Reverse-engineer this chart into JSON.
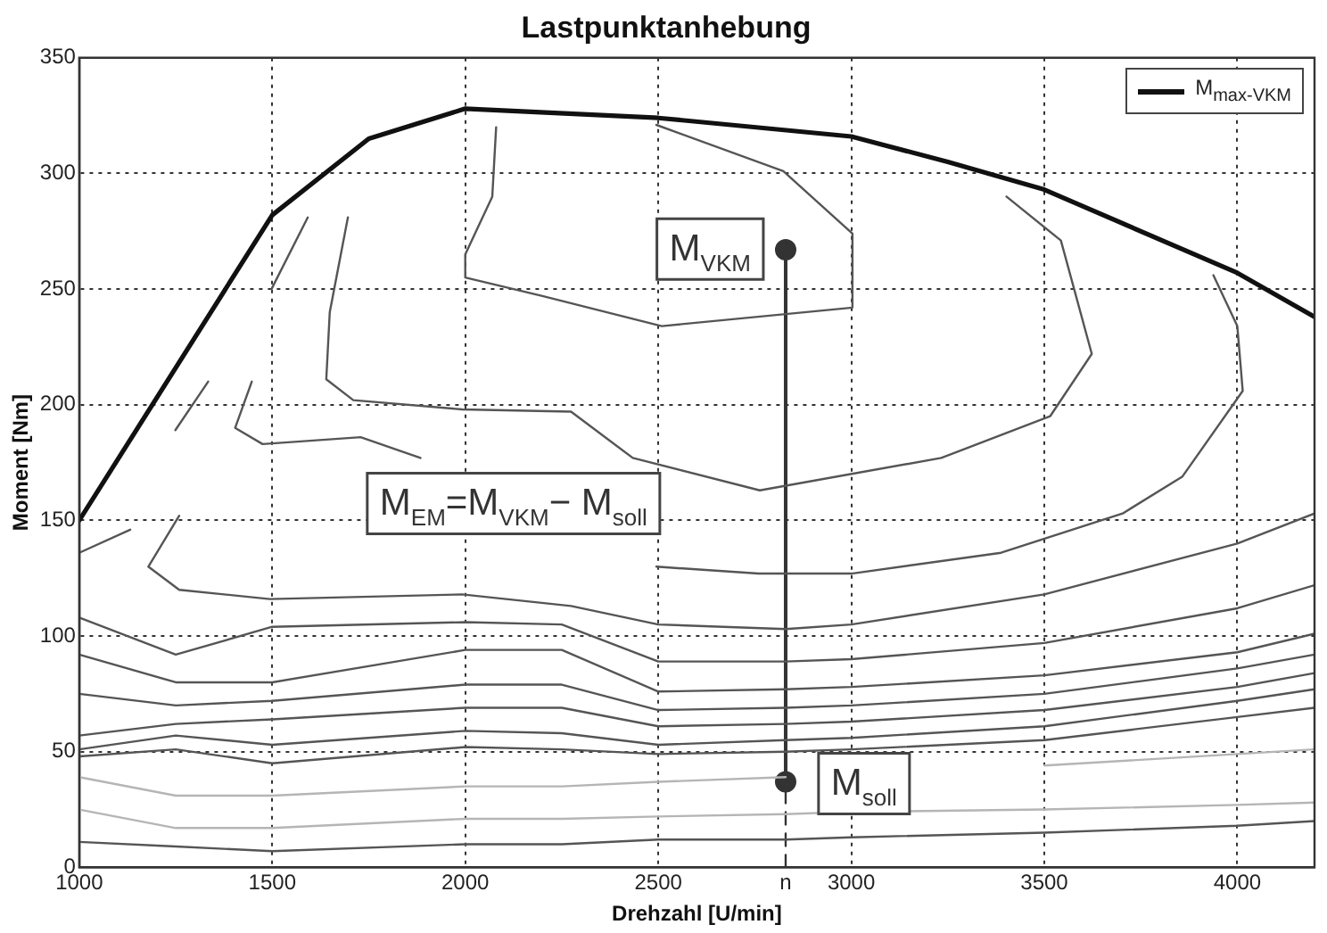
{
  "chart_data": {
    "type": "line",
    "title": "Lastpunktanhebung",
    "xlabel": "Drehzahl [U/min]",
    "ylabel": "Moment [Nm]",
    "xlim": [
      1000,
      4200
    ],
    "ylim": [
      0,
      350
    ],
    "xticks": [
      1000,
      1500,
      2000,
      2500,
      {
        "value": 2830,
        "label": "n"
      },
      3000,
      3500,
      4000
    ],
    "yticks": [
      0,
      50,
      100,
      150,
      200,
      250,
      300,
      350
    ],
    "grid": true,
    "legend": "top right",
    "marker": "none",
    "line_style": "solid",
    "series": [
      {
        "name": "M$_{max-VKM}$",
        "color": "#111111",
        "x": [
          1000,
          1500,
          1750,
          2000,
          2500,
          3000,
          3250,
          3500,
          4000,
          4200
        ],
        "values": [
          150,
          282,
          315,
          328,
          324,
          316,
          305,
          293,
          257,
          238
        ]
      },
      {
        "color": "#555555",
        "x": [
          1000,
          1250,
          1500,
          2000,
          2250,
          2500,
          2830,
          3000,
          3500,
          4000,
          4200
        ],
        "values": [
          11,
          9,
          7,
          10,
          10,
          12,
          12,
          13,
          15,
          18,
          20
        ]
      },
      {
        "color": "#b5b5b5",
        "x": [
          1000,
          1250,
          1500,
          2000,
          2250,
          2500,
          2830,
          3000,
          3500,
          4000,
          4200
        ],
        "values": [
          25,
          17,
          17,
          21,
          21,
          22,
          23,
          24,
          25,
          27,
          28
        ]
      },
      {
        "color": "#b5b5b5",
        "x": [
          1000,
          1250,
          1500,
          2000,
          2250,
          2500,
          2830,
          3000,
          3500,
          4000,
          4200
        ],
        "values": [
          39,
          31,
          31,
          35,
          35,
          37,
          39,
          null,
          44,
          49,
          51
        ]
      },
      {
        "color": "#555555",
        "x": [
          1000,
          1250,
          1500,
          2000,
          2250,
          2500,
          2830,
          3000,
          3500,
          4000,
          4200
        ],
        "values": [
          48,
          51,
          45,
          52,
          51,
          49,
          50,
          51,
          55,
          65,
          69
        ]
      },
      {
        "color": "#555555",
        "x": [
          1000,
          1250,
          1500,
          2000,
          2250,
          2500,
          2830,
          3000,
          3500,
          4000,
          4200
        ],
        "values": [
          51,
          57,
          53,
          59,
          58,
          53,
          55,
          56,
          61,
          72,
          77
        ]
      },
      {
        "color": "#555555",
        "x": [
          1000,
          1250,
          1500,
          2000,
          2250,
          2500,
          2830,
          3000,
          3500,
          4000,
          4200
        ],
        "values": [
          57,
          62,
          64,
          69,
          69,
          61,
          62,
          63,
          68,
          78,
          84
        ]
      },
      {
        "color": "#555555",
        "x": [
          1000,
          1250,
          1500,
          2000,
          2250,
          2500,
          2830,
          3000,
          3500,
          4000,
          4200
        ],
        "values": [
          75,
          70,
          72,
          79,
          79,
          68,
          69,
          70,
          75,
          86,
          92
        ]
      },
      {
        "color": "#555555",
        "x": [
          1000,
          1250,
          1500,
          2000,
          2250,
          2500,
          2830,
          3000,
          3500,
          4000,
          4200
        ],
        "values": [
          92,
          80,
          80,
          94,
          94,
          76,
          77,
          78,
          83,
          93,
          101
        ]
      },
      {
        "color": "#555555",
        "x": [
          1000,
          1250,
          1500,
          2000,
          2250,
          2500,
          2830,
          3000,
          3500,
          4000,
          4200
        ],
        "values": [
          108,
          92,
          104,
          106,
          105,
          89,
          89,
          90,
          97,
          112,
          122
        ]
      },
      {
        "color": "#555555",
        "x": [
          1259,
          1179,
          1259,
          1494,
          1992,
          2274,
          2500,
          2830,
          3000,
          3500,
          4000,
          4200
        ],
        "values": [
          152,
          130,
          120,
          116,
          118,
          113,
          105,
          103,
          105,
          118,
          140,
          153
        ]
      },
      {
        "color": "#555555",
        "x": [
          1000,
          1132
        ],
        "values": [
          136,
          146
        ]
      },
      {
        "color": "#555555",
        "x": [
          1249,
          1334
        ],
        "values": [
          189,
          210
        ]
      },
      {
        "color": "#555555",
        "x": [
          1498,
          1592
        ],
        "values": [
          250,
          281
        ]
      },
      {
        "color": "#555555",
        "x": [
          1447,
          1404,
          1475,
          1729,
          1884,
          2293,
          2495,
          2760,
          3000,
          3388,
          3703,
          3858,
          4014,
          4000,
          3938
        ],
        "values": [
          210,
          190,
          183,
          186,
          177,
          null,
          130,
          127,
          127,
          136,
          153,
          169,
          206,
          234,
          256
        ]
      },
      {
        "color": "#555555",
        "x": [
          1696,
          1649,
          1640,
          1710,
          1992,
          2274,
          2434,
          2763,
          3233,
          3515,
          3623,
          3543,
          3402
        ],
        "values": [
          281,
          240,
          211,
          202,
          198,
          197,
          177,
          163,
          177,
          195,
          222,
          271,
          290
        ]
      },
      {
        "color": "#555555",
        "x": [
          2080,
          2070,
          2000,
          2000,
          2200,
          2509,
          3003,
          3003,
          2824,
          2495
        ],
        "values": [
          320,
          290,
          265,
          255,
          247,
          234,
          242,
          274,
          301,
          321
        ]
      },
      {
        "color": "#333333",
        "x": [
          2830,
          2830
        ],
        "values": [
          37,
          267
        ],
        "marker": "circle"
      },
      {
        "color": "#333333",
        "x": [
          2830,
          2830
        ],
        "values": [
          0,
          37
        ],
        "line_style": "dashed"
      }
    ],
    "annotations": [
      "M$_{VKM}$",
      "M$_{EM}$=M$_{VKM}$− M$_{soll}$",
      "M$_{soll}$"
    ]
  }
}
